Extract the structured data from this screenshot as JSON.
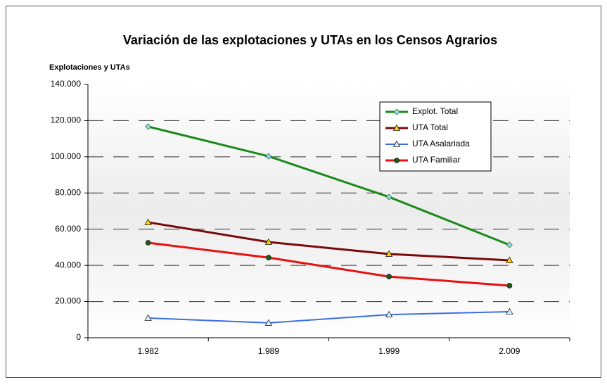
{
  "chart_data": {
    "type": "line",
    "title": "Variación de las explotaciones y UTAs en los Censos Agrarios",
    "y_label": "Explotaciones y UTAs",
    "categories": [
      "1.982",
      "1.989",
      "1.999",
      "2.009"
    ],
    "series": [
      {
        "name": "Explot. Total",
        "color": "#1a8a1a",
        "marker": "diamond",
        "values": [
          116700,
          100300,
          77800,
          51300
        ]
      },
      {
        "name": "UTA Total",
        "color": "#7a0a0a",
        "marker": "triangle",
        "values": [
          63800,
          52900,
          46300,
          42800
        ]
      },
      {
        "name": "UTA Asalariada",
        "color": "#3b6fe0",
        "marker": "triangle",
        "values": [
          10900,
          8200,
          12800,
          14400
        ]
      },
      {
        "name": "UTA Familiar",
        "color": "#e81010",
        "marker": "circle",
        "values": [
          52500,
          44300,
          33800,
          28800
        ]
      }
    ],
    "ylim": [
      0,
      140000
    ],
    "yticks": [
      0,
      {
        "value": 20000,
        "label": "20.000"
      },
      {
        "value": 40000,
        "label": "40.000"
      },
      {
        "value": 60000,
        "label": "60.000"
      },
      {
        "value": 80000,
        "label": "80.000"
      },
      {
        "value": 100000,
        "label": "100.000"
      },
      {
        "value": 120000,
        "label": "120.000"
      },
      {
        "value": 140000,
        "label": "140.000"
      }
    ],
    "grid": true,
    "legend": "upper right"
  }
}
